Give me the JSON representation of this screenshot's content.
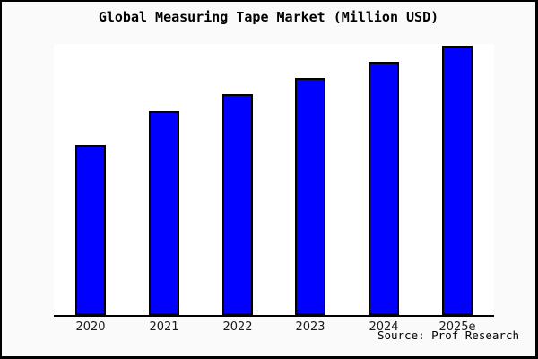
{
  "chart_data": {
    "type": "bar",
    "title": "Global Measuring Tape Market (Million USD)",
    "categories": [
      "2020",
      "2021",
      "2022",
      "2023",
      "2024",
      "2025e"
    ],
    "values": [
      10,
      12,
      13,
      14,
      15,
      16
    ],
    "values_note": "no y-axis ticks shown in chart; values are relative units estimated from bar heights",
    "bar_heights_pct": [
      62.6,
      75.0,
      81.3,
      87.5,
      93.4,
      99.3
    ],
    "ylim": [
      0,
      16.1
    ],
    "xlabel": "",
    "ylabel": "",
    "grid": false,
    "legend": "none",
    "source": "Source: Prof Research",
    "colors": {
      "bar_fill": "#0000ff",
      "bar_edge": "#000000",
      "plot_background": "#ffffff",
      "figure_background": "#fafafa",
      "frame_border": "#000000",
      "tick_label_text": "#1a1a1a",
      "title_text": "#000000"
    }
  }
}
